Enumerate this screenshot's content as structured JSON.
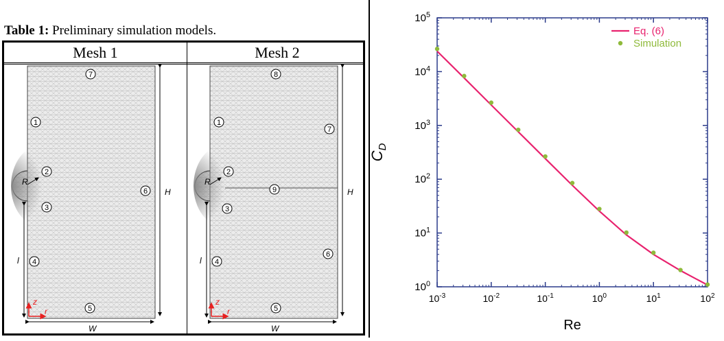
{
  "table": {
    "label": "Table 1:",
    "caption": "Preliminary simulation models.",
    "columns": [
      "Mesh 1",
      "Mesh 2"
    ]
  },
  "mesh1": {
    "region_labels": [
      "1",
      "2",
      "3",
      "4",
      "5",
      "6",
      "7"
    ],
    "dims": {
      "R": "R",
      "H": "H",
      "l": "l",
      "W": "W"
    },
    "axes": {
      "z": "z",
      "r": "r"
    }
  },
  "mesh2": {
    "region_labels": [
      "1",
      "2",
      "3",
      "4",
      "5",
      "6",
      "7",
      "8",
      "9"
    ],
    "dims": {
      "R": "R",
      "H": "H",
      "l": "l",
      "W": "W"
    },
    "axes": {
      "z": "z",
      "r": "r"
    }
  },
  "chart_data": {
    "type": "line",
    "xlabel": "Re",
    "ylabel": "C_D",
    "xscale": "log",
    "yscale": "log",
    "xlim": [
      0.001,
      100
    ],
    "ylim": [
      1,
      100000
    ],
    "x_ticks": [
      "10^-3",
      "10^-2",
      "10^-1",
      "10^0",
      "10^1",
      "10^2"
    ],
    "y_ticks": [
      "10^0",
      "10^1",
      "10^2",
      "10^3",
      "10^4",
      "10^5"
    ],
    "legend_position": "top-right",
    "series": [
      {
        "name": "Eq. (6)",
        "kind": "line",
        "color": "#e8226e",
        "x": [
          0.001,
          0.00316,
          0.01,
          0.0316,
          0.1,
          0.316,
          1,
          3.16,
          10,
          31.6,
          100
        ],
        "y": [
          24000,
          7600,
          2400,
          760,
          241,
          77,
          25.5,
          9.2,
          4.0,
          2.0,
          1.08
        ]
      },
      {
        "name": "Simulation",
        "kind": "scatter",
        "color": "#8fba3b",
        "x": [
          0.001,
          0.00316,
          0.01,
          0.0316,
          0.1,
          0.316,
          1,
          3.16,
          10,
          31.6,
          100
        ],
        "y": [
          26500,
          8300,
          2650,
          830,
          265,
          85,
          28,
          10.2,
          4.3,
          2.05,
          1.1
        ]
      }
    ]
  }
}
